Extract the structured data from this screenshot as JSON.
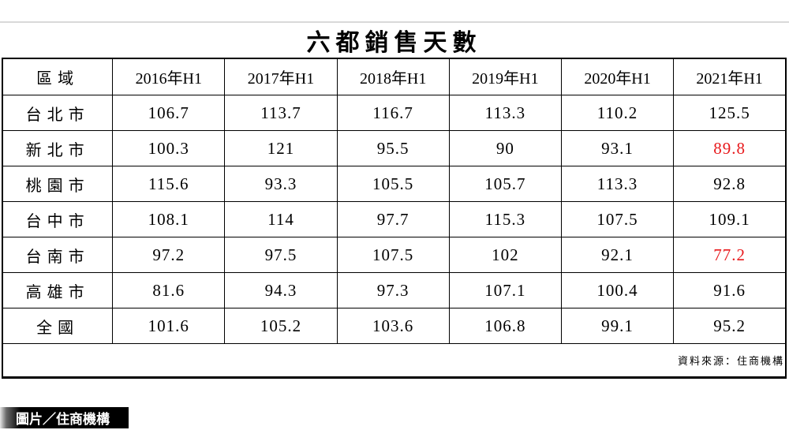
{
  "chart_data": {
    "type": "table",
    "title": "六都銷售天數",
    "columns": [
      "區域",
      "2016年H1",
      "2017年H1",
      "2018年H1",
      "2019年H1",
      "2020年H1",
      "2021年H1"
    ],
    "categories": [
      "2016年H1",
      "2017年H1",
      "2018年H1",
      "2019年H1",
      "2020年H1",
      "2021年H1"
    ],
    "rows": [
      {
        "region": "台北市",
        "values": [
          "106.7",
          "113.7",
          "116.7",
          "113.3",
          "110.2",
          "125.5"
        ],
        "red_indices": []
      },
      {
        "region": "新北市",
        "values": [
          "100.3",
          "121",
          "95.5",
          "90",
          "93.1",
          "89.8"
        ],
        "red_indices": [
          5
        ]
      },
      {
        "region": "桃園市",
        "values": [
          "115.6",
          "93.3",
          "105.5",
          "105.7",
          "113.3",
          "92.8"
        ],
        "red_indices": []
      },
      {
        "region": "台中市",
        "values": [
          "108.1",
          "114",
          "97.7",
          "115.3",
          "107.5",
          "109.1"
        ],
        "red_indices": []
      },
      {
        "region": "台南市",
        "values": [
          "97.2",
          "97.5",
          "107.5",
          "102",
          "92.1",
          "77.2"
        ],
        "red_indices": [
          5
        ]
      },
      {
        "region": "高雄市",
        "values": [
          "81.6",
          "94.3",
          "97.3",
          "107.1",
          "100.4",
          "91.6"
        ],
        "red_indices": []
      },
      {
        "region": "全國",
        "values": [
          "101.6",
          "105.2",
          "103.6",
          "106.8",
          "99.1",
          "95.2"
        ],
        "red_indices": []
      }
    ],
    "source_note": "資料來源：住商機構"
  },
  "credit_badge": {
    "label": "圖片／住商機構"
  },
  "colors": {
    "highlight_red": "#e8191c",
    "border_black": "#000000",
    "rule_gray": "#d9d9d9"
  }
}
